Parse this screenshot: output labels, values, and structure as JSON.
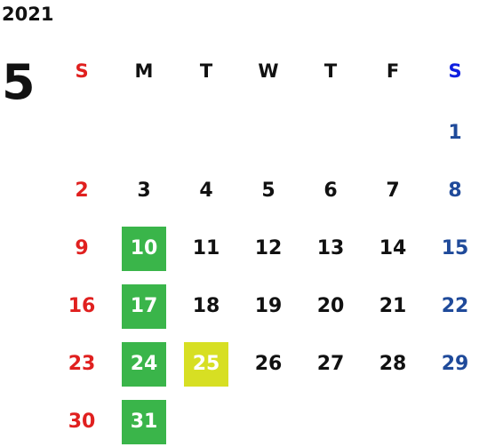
{
  "calendar": {
    "year": "2021",
    "month": "5",
    "weekdays": [
      "S",
      "M",
      "T",
      "W",
      "T",
      "F",
      "S"
    ],
    "weeks": [
      [
        "",
        "",
        "",
        "",
        "",
        "",
        "1"
      ],
      [
        "2",
        "3",
        "4",
        "5",
        "6",
        "7",
        "8"
      ],
      [
        "9",
        "10",
        "11",
        "12",
        "13",
        "14",
        "15"
      ],
      [
        "16",
        "17",
        "18",
        "19",
        "20",
        "21",
        "22"
      ],
      [
        "23",
        "24",
        "25",
        "26",
        "27",
        "28",
        "29"
      ],
      [
        "30",
        "31",
        "",
        "",
        "",
        "",
        ""
      ]
    ],
    "highlights": {
      "green": [
        "10",
        "17",
        "24",
        "31"
      ],
      "yellow": [
        "25"
      ]
    },
    "colors": {
      "sunday": "#e0201f",
      "saturday": "#1f4a9a",
      "saturday_header": "#1020e0",
      "green_highlight": "#3ab54a",
      "yellow_highlight": "#d7df23"
    }
  }
}
